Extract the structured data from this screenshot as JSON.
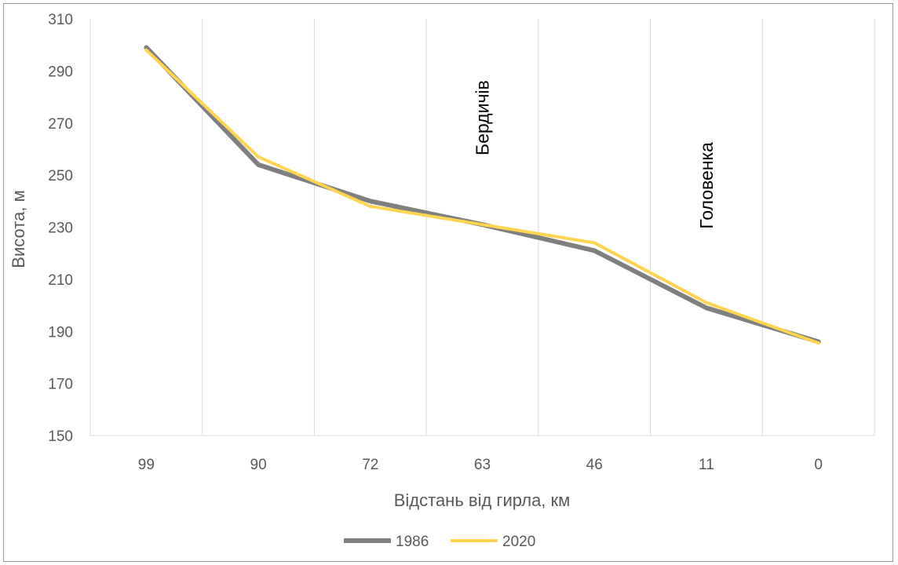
{
  "chart_data": {
    "type": "line",
    "categories": [
      "99",
      "90",
      "72",
      "63",
      "46",
      "11",
      "0"
    ],
    "series": [
      {
        "name": "1986",
        "color": "#7f7f7f",
        "values": [
          299,
          254,
          240,
          231,
          221,
          199,
          186
        ]
      },
      {
        "name": "2020",
        "color": "#ffd54f",
        "values": [
          298,
          257,
          238,
          231,
          224,
          201,
          185.5
        ]
      }
    ],
    "xlabel": "Відстань від гирла, км",
    "ylabel": "Висота, м",
    "ylim": [
      150,
      310
    ],
    "yticks": [
      "150",
      "170",
      "190",
      "210",
      "230",
      "250",
      "270",
      "290",
      "310"
    ],
    "grid": "vertical",
    "legend": "bottom",
    "annotations": [
      {
        "text": "Бердичів",
        "at_category": "63",
        "y_center": 272
      },
      {
        "text": "Головенка",
        "at_category": "11",
        "y_center": 246
      }
    ]
  }
}
